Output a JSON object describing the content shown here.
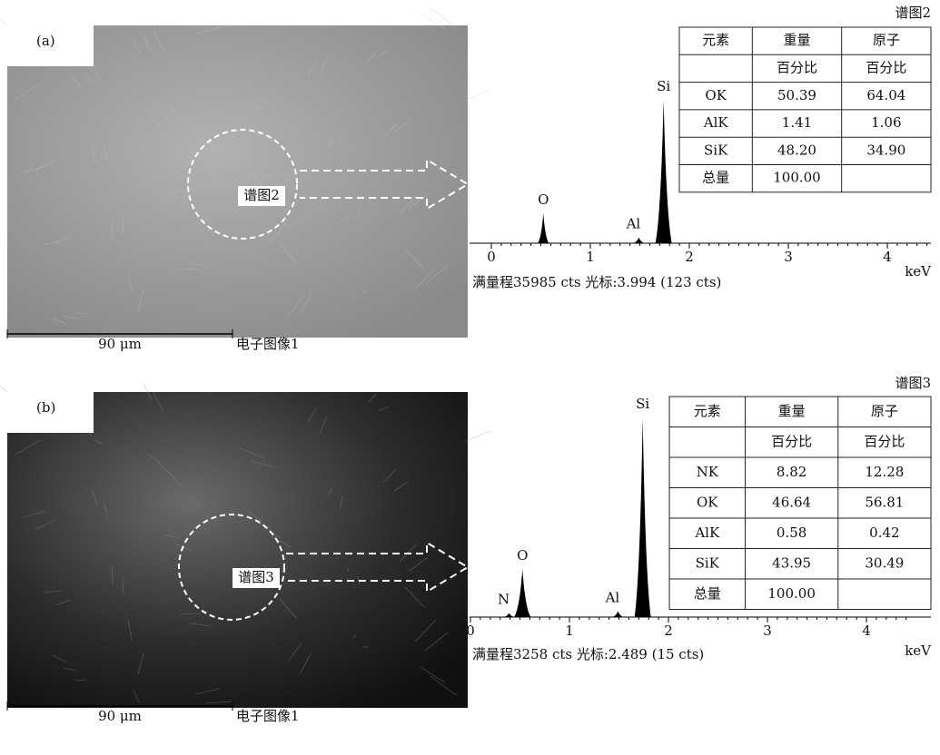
{
  "panels": [
    {
      "label": "(a)",
      "spectrum_title": "谱图2",
      "marker": "谱图2",
      "scale": "90 μm",
      "image_caption": "电子图像1",
      "xticks": [
        0,
        1,
        2,
        3,
        4
      ],
      "xunit": "keV",
      "footer": "满量程35985 cts  光标:3.994 (123 cts)",
      "peaks": [
        {
          "label": "O",
          "energy": 0.525,
          "height": 21
        },
        {
          "label": "Al",
          "energy": 1.49,
          "height": 4
        },
        {
          "label": "Si",
          "energy": 1.74,
          "height": 100
        }
      ],
      "table": {
        "header": [
          "元素",
          "重量",
          "原子"
        ],
        "units": [
          "百分比",
          "百分比"
        ],
        "rows": [
          [
            "OK",
            "50.39",
            "64.04"
          ],
          [
            "AlK",
            "1.41",
            "1.06"
          ],
          [
            "SiK",
            "48.20",
            "34.90"
          ]
        ],
        "total": [
          "总量",
          "100.00"
        ]
      }
    },
    {
      "label": "(b)",
      "spectrum_title": "谱图3",
      "marker": "谱图3",
      "scale": "90 μm",
      "image_caption": "电子图像1",
      "xticks": [
        0,
        1,
        2,
        3,
        4
      ],
      "xunit": "keV",
      "footer": "满量程3258 cts  光标:2.489 (15 cts)",
      "peaks": [
        {
          "label": "N",
          "energy": 0.39,
          "height": 2
        },
        {
          "label": "O",
          "energy": 0.525,
          "height": 24
        },
        {
          "label": "Al",
          "energy": 1.49,
          "height": 3
        },
        {
          "label": "Si",
          "energy": 1.74,
          "height": 100
        }
      ],
      "table": {
        "header": [
          "元素",
          "重量",
          "原子"
        ],
        "units": [
          "百分比",
          "百分比"
        ],
        "rows": [
          [
            "NK",
            "8.82",
            "12.28"
          ],
          [
            "OK",
            "46.64",
            "56.81"
          ],
          [
            "AlK",
            "0.58",
            "0.42"
          ],
          [
            "SiK",
            "43.95",
            "30.49"
          ]
        ],
        "total": [
          "总量",
          "100.00"
        ]
      }
    }
  ]
}
